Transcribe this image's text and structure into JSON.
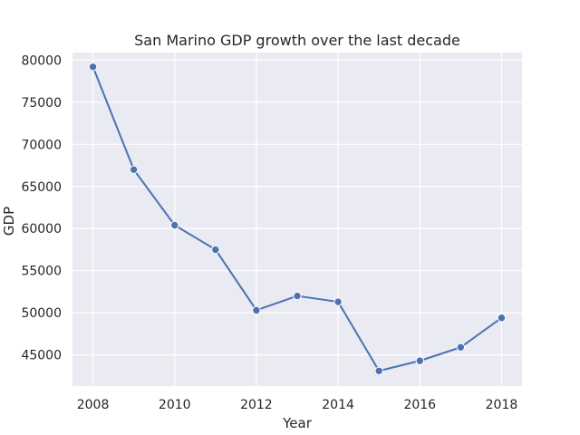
{
  "chart_data": {
    "type": "line",
    "title": "San Marino GDP growth over the last decade",
    "xlabel": "Year",
    "ylabel": "GDP",
    "x": [
      2008,
      2009,
      2010,
      2011,
      2012,
      2013,
      2014,
      2015,
      2016,
      2017,
      2018
    ],
    "series": [
      {
        "values": [
          79200,
          67000,
          60400,
          57500,
          50300,
          52000,
          51300,
          43100,
          44300,
          45900,
          49400
        ]
      }
    ],
    "xlim": [
      2007.5,
      2018.5
    ],
    "ylim": [
      41300,
      80900
    ],
    "xticks": [
      2008,
      2010,
      2012,
      2014,
      2016,
      2018
    ],
    "yticks": [
      45000,
      50000,
      55000,
      60000,
      65000,
      70000,
      75000,
      80000
    ],
    "grid": true,
    "marker": "circle",
    "colors": {
      "line": "#4c72b0",
      "background": "#eaeaf2",
      "grid": "#ffffff"
    }
  }
}
